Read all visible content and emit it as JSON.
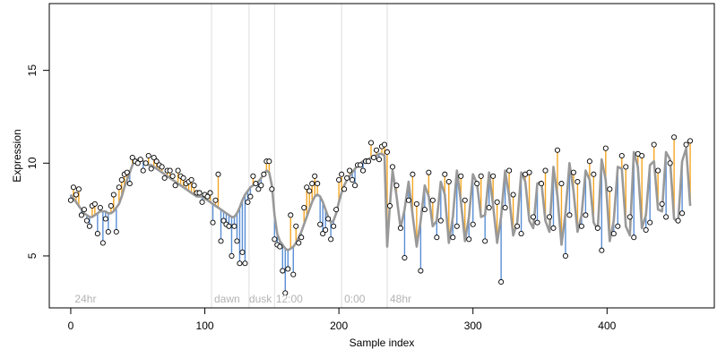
{
  "chart_data": {
    "type": "scatter",
    "title": "",
    "xlabel": "Sample index",
    "ylabel": "Expression",
    "xlim": [
      -16,
      480
    ],
    "ylim": [
      2.2,
      18.6
    ],
    "x_ticks": [
      0,
      100,
      200,
      300,
      400
    ],
    "y_ticks": [
      5,
      10,
      15
    ],
    "grid": false,
    "legend": "none",
    "colors": {
      "points_fill": "#ffffff",
      "points_stroke": "#000000",
      "fitted_line": "#999999",
      "residual_positive": "#f5a623",
      "residual_negative": "#5a8fd6",
      "separator_lines": "#dddddd",
      "annotation_text": "#b3b3b3"
    },
    "vertical_separators": [
      105,
      133,
      152,
      202,
      236
    ],
    "annotations": [
      {
        "x": 3,
        "label": "24hr"
      },
      {
        "x": 107,
        "label": "dawn"
      },
      {
        "x": 133,
        "label": "dusk"
      },
      {
        "x": 153,
        "label": "12:00"
      },
      {
        "x": 204,
        "label": "0:00"
      },
      {
        "x": 238,
        "label": "48hr"
      }
    ],
    "series": [
      {
        "x": [
          0,
          2,
          4,
          6,
          8,
          10,
          12,
          14,
          16,
          18,
          20,
          22,
          24,
          26,
          28,
          30,
          32,
          34,
          36,
          38,
          40,
          42,
          44,
          46,
          48,
          50,
          52,
          54,
          56,
          58,
          60,
          62,
          64,
          66,
          68,
          70,
          72,
          74,
          76,
          78,
          80,
          82,
          84,
          86,
          88,
          90,
          92,
          94,
          96,
          98,
          100,
          102,
          104,
          106,
          108,
          110,
          112,
          114,
          116,
          118,
          120,
          122,
          124,
          126,
          128,
          130,
          132,
          134,
          136,
          138,
          140,
          142,
          144,
          146,
          148,
          150,
          152,
          154,
          156,
          158,
          160,
          162,
          164,
          166,
          168,
          170,
          172,
          174,
          176,
          178,
          180,
          182,
          184,
          186,
          188,
          190,
          192,
          194,
          196,
          198,
          200,
          202,
          204,
          206,
          208,
          210,
          212,
          214,
          216,
          218,
          220,
          222,
          224,
          226,
          228,
          230,
          232,
          234,
          236,
          238,
          240,
          243,
          246,
          249,
          252,
          255,
          258,
          261,
          264,
          267,
          270,
          273,
          276,
          279,
          282,
          285,
          288,
          291,
          294,
          297,
          300,
          303,
          306,
          309,
          312,
          315,
          318,
          321,
          324,
          327,
          330,
          333,
          336,
          339,
          342,
          345,
          348,
          351,
          354,
          357,
          360,
          363,
          366,
          369,
          372,
          375,
          378,
          381,
          384,
          387,
          390,
          393,
          396,
          399,
          402,
          405,
          408,
          411,
          414,
          417,
          420,
          423,
          426,
          429,
          432,
          435,
          438,
          441,
          444,
          447,
          450,
          453,
          456,
          459,
          462
        ],
        "fitted": [
          8.3,
          8.1,
          7.9,
          7.7,
          7.5,
          7.3,
          7.2,
          7.1,
          7.1,
          7.2,
          7.3,
          7.4,
          7.4,
          7.4,
          7.3,
          7.3,
          7.4,
          7.6,
          7.8,
          8.2,
          8.7,
          9.1,
          9.5,
          9.9,
          10.1,
          10.2,
          10.2,
          10.1,
          10.0,
          9.9,
          9.9,
          9.8,
          9.7,
          9.6,
          9.5,
          9.4,
          9.3,
          9.2,
          9.1,
          9.0,
          8.9,
          8.8,
          8.7,
          8.6,
          8.5,
          8.4,
          8.3,
          8.2,
          8.2,
          8.2,
          8.1,
          8.0,
          7.9,
          7.8,
          7.7,
          7.6,
          7.5,
          7.4,
          7.3,
          7.2,
          7.1,
          7.1,
          7.3,
          7.6,
          8.0,
          8.3,
          8.5,
          8.7,
          8.8,
          8.9,
          9.0,
          9.2,
          9.4,
          9.6,
          9.5,
          8.8,
          7.2,
          6.2,
          5.8,
          5.6,
          5.4,
          5.3,
          5.4,
          5.5,
          5.7,
          6.0,
          6.3,
          6.7,
          7.1,
          7.5,
          7.9,
          8.2,
          8.3,
          8.2,
          7.9,
          7.5,
          7.1,
          6.8,
          6.9,
          7.3,
          7.9,
          8.4,
          8.8,
          9.1,
          9.3,
          9.5,
          9.7,
          9.9,
          10.0,
          10.1,
          10.2,
          10.2,
          10.3,
          10.4,
          10.4,
          10.5,
          10.5,
          10.4,
          5.5,
          7.7,
          9.6,
          8.2,
          6.5,
          7.5,
          9.0,
          7.2,
          5.5,
          6.9,
          8.8,
          8.2,
          6.6,
          6.9,
          9.0,
          8.3,
          5.7,
          7.1,
          9.6,
          7.9,
          5.8,
          7.1,
          9.4,
          8.9,
          7.1,
          7.2,
          9.5,
          7.7,
          5.7,
          7.1,
          9.6,
          8.2,
          6.1,
          6.8,
          9.5,
          9.0,
          6.9,
          6.5,
          8.9,
          9.0,
          6.9,
          6.3,
          9.8,
          8.2,
          5.6,
          7.3,
          10.0,
          8.5,
          6.3,
          7.2,
          9.6,
          9.1,
          6.8,
          6.4,
          10.2,
          9.1,
          5.8,
          6.9,
          9.8,
          9.7,
          6.6,
          6.1,
          10.6,
          9.8,
          6.5,
          7.2,
          9.9,
          10.1,
          7.5,
          7.4,
          10.6,
          10.2,
          7.0,
          6.8,
          10.1,
          10.8,
          7.7
        ],
        "observed": [
          8.0,
          8.7,
          8.3,
          8.6,
          7.2,
          7.5,
          6.9,
          6.6,
          7.7,
          7.8,
          6.2,
          7.6,
          5.7,
          7.0,
          6.3,
          7.7,
          8.3,
          6.3,
          8.7,
          9.1,
          9.4,
          9.5,
          8.9,
          10.3,
          10.1,
          10.0,
          10.2,
          9.6,
          10.0,
          10.4,
          9.7,
          10.3,
          10.1,
          9.9,
          9.8,
          9.2,
          9.6,
          9.6,
          9.3,
          8.8,
          9.6,
          9.3,
          9.2,
          8.9,
          9.0,
          9.1,
          8.8,
          8.4,
          8.4,
          7.9,
          8.3,
          8.2,
          8.4,
          6.8,
          8.0,
          9.4,
          5.8,
          6.9,
          6.7,
          6.6,
          5.0,
          6.6,
          5.8,
          4.6,
          5.2,
          4.6,
          7.9,
          8.2,
          9.3,
          8.9,
          8.6,
          8.8,
          9.4,
          10.1,
          10.1,
          8.6,
          5.9,
          5.6,
          5.5,
          4.2,
          3.0,
          4.3,
          7.2,
          4.0,
          6.6,
          5.7,
          6.0,
          7.6,
          8.7,
          8.5,
          8.9,
          9.3,
          8.9,
          6.7,
          6.2,
          6.4,
          7.0,
          5.9,
          6.6,
          7.5,
          9.1,
          9.4,
          8.6,
          9.2,
          9.6,
          9.1,
          8.8,
          9.9,
          9.9,
          9.6,
          10.1,
          10.1,
          11.1,
          10.3,
          10.7,
          10.2,
          10.9,
          11.0,
          10.6,
          7.7,
          9.8,
          8.8,
          6.5,
          4.9,
          8.0,
          9.4,
          7.8,
          4.2,
          7.5,
          9.5,
          8.0,
          6.0,
          6.9,
          9.4,
          9.0,
          6.0,
          6.6,
          9.3,
          8.0,
          5.9,
          6.7,
          8.9,
          9.3,
          5.8,
          7.6,
          9.3,
          7.9,
          3.6,
          7.6,
          9.6,
          8.3,
          6.6,
          6.2,
          9.4,
          9.5,
          7.1,
          6.8,
          8.9,
          9.6,
          7.1,
          6.5,
          10.7,
          8.9,
          5.0,
          7.2,
          9.5,
          9.0,
          6.6,
          7.2,
          10.1,
          9.4,
          6.5,
          5.3,
          10.8,
          8.6,
          6.2,
          6.6,
          10.4,
          9.8,
          7.1,
          6.0,
          10.5,
          10.4,
          6.4,
          6.8,
          11.0,
          9.6,
          7.8,
          7.1,
          10.0,
          11.4,
          6.9,
          7.3,
          11.0,
          11.2,
          7.8
        ]
      }
    ]
  }
}
